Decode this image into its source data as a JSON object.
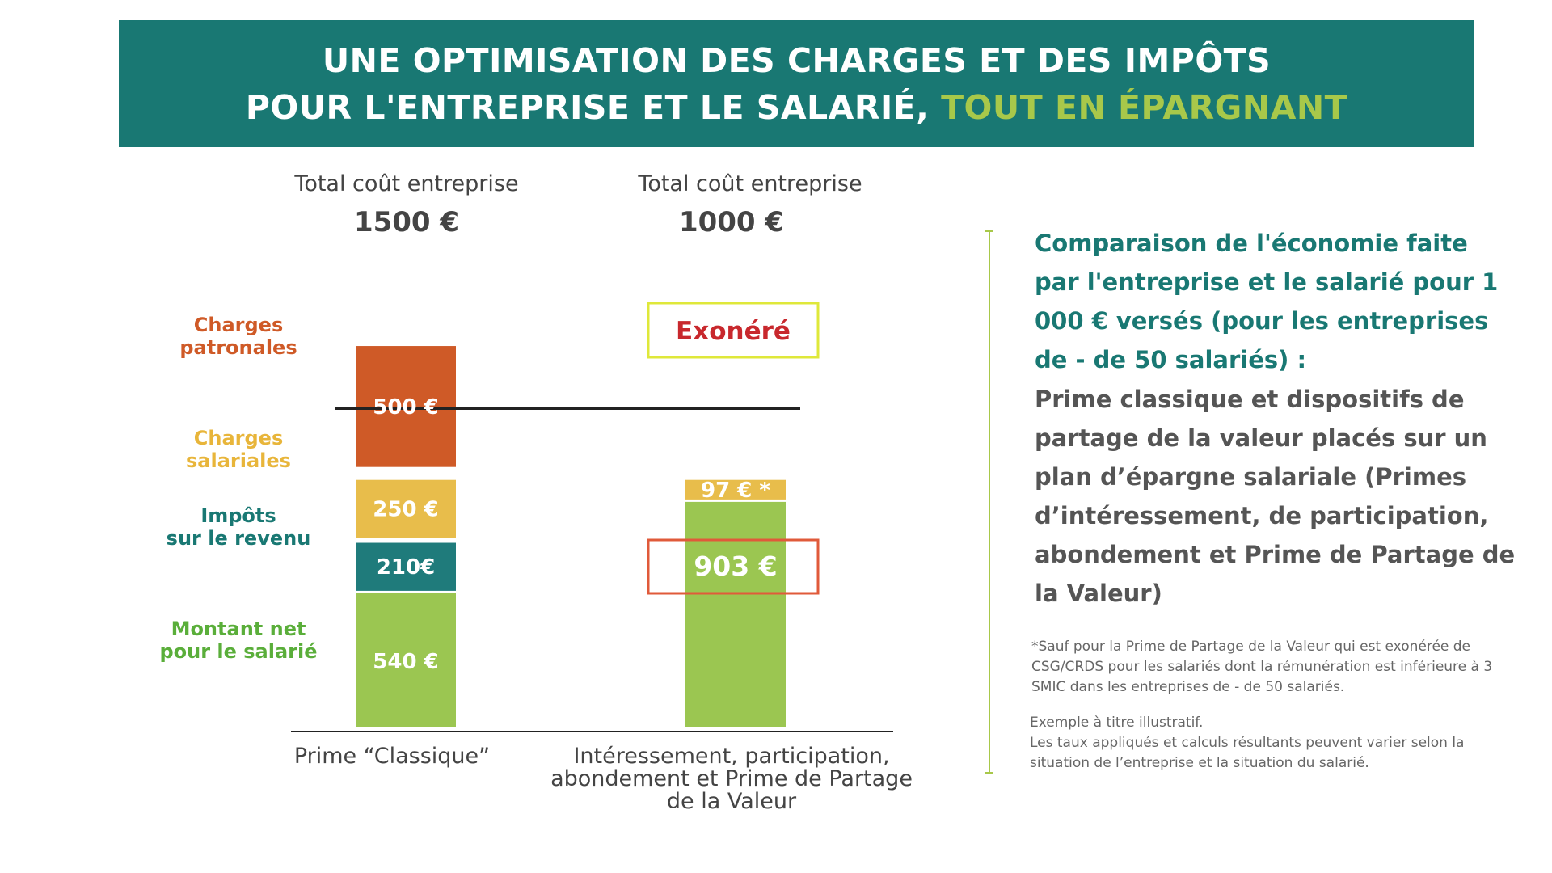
{
  "banner": {
    "line1": "UNE OPTIMISATION DES CHARGES ET DES IMPÔTS",
    "line2_main": "POUR L'ENTREPRISE ET LE SALARIÉ,",
    "line2_accent": "TOUT EN ÉPARGNANT"
  },
  "columns": [
    {
      "header_label": "Total coût entreprise",
      "header_total": "1500 €"
    },
    {
      "header_label": "Total coût entreprise",
      "header_total": "1000 €"
    }
  ],
  "categories_labels": {
    "charges_patronales": "Charges\npatronales",
    "charges_salariales": "Charges\nsalariales",
    "impots": "Impôts\nsur le revenu",
    "net": "Montant net\npour le salarié"
  },
  "exonere_label": "Exonéré",
  "colors": {
    "banner": "#197873",
    "accent": "#a8c84a",
    "charges_patronales": "#cf5a27",
    "charges_salariales": "#e8bd4b",
    "impots": "#1f7b7b",
    "net": "#9bc651",
    "highlight_box": "#e05a3a",
    "exonere_border": "#dfe83a",
    "exonere_text": "#c8282d"
  },
  "chart_data": {
    "type": "bar",
    "stacked": true,
    "categories": [
      "Prime “Classique”",
      "Intéressement, participation, abondement et Prime de Partage de la Valeur"
    ],
    "series": [
      {
        "name": "Charges patronales",
        "values": [
          500,
          0
        ]
      },
      {
        "name": "Charges salariales",
        "values": [
          250,
          97
        ]
      },
      {
        "name": "Impôts sur le revenu",
        "values": [
          210,
          0
        ]
      },
      {
        "name": "Montant net pour le salarié",
        "values": [
          540,
          903
        ]
      }
    ],
    "data_labels": [
      {
        "series": "Charges patronales",
        "category": 0,
        "text": "500 €"
      },
      {
        "series": "Charges salariales",
        "category": 0,
        "text": "250 €"
      },
      {
        "series": "Impôts sur le revenu",
        "category": 0,
        "text": "210€"
      },
      {
        "series": "Montant net pour le salarié",
        "category": 0,
        "text": "540 €"
      },
      {
        "series": "Charges salariales",
        "category": 1,
        "text": "97 € *"
      },
      {
        "series": "Montant net pour le salarié",
        "category": 1,
        "text": "903 €"
      }
    ],
    "totals": [
      1500,
      1000
    ]
  },
  "side": {
    "heading": "Comparaison de l'économie faite par l'entreprise et le salarié pour 1 000 € versés (pour les entreprises de - de 50 salariés) :",
    "description": "Prime classique et dispositifs de partage de la valeur placés sur un plan d’épargne salariale (Primes d’intéressement, de participation, abondement et Prime de Partage de la Valeur)",
    "footnote": "*Sauf pour la Prime de Partage de la Valeur qui est exonérée de CSG/CRDS pour les salariés dont la rémunération est inférieure à 3 SMIC dans les entreprises de - de 50 salariés.",
    "example_line1": "Exemple à titre illustratif.",
    "example_line2": "Les taux appliqués et calculs résultants peuvent varier selon la situation de l’entreprise et la situation du salarié."
  }
}
